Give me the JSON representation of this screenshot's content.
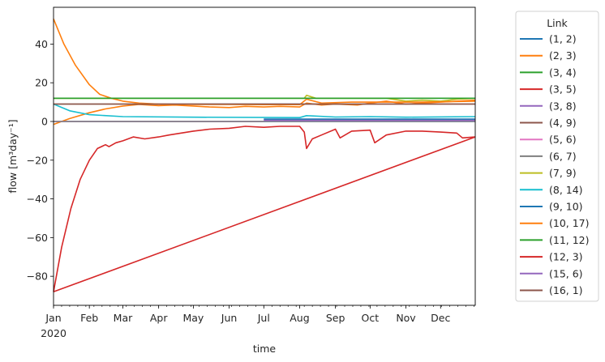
{
  "chart_data": {
    "type": "line",
    "xlabel": "time",
    "ylabel": "flow [m³day⁻¹]",
    "x_tick_labels": [
      "Jan",
      "Feb",
      "Mar",
      "Apr",
      "May",
      "Jun",
      "Jul",
      "Aug",
      "Sep",
      "Oct",
      "Nov",
      "Dec"
    ],
    "x_year_label": "2020",
    "x_start": "2020-01-01",
    "x_end": "2020-12-31",
    "ylim": [
      -95,
      59
    ],
    "y_ticks": [
      40,
      20,
      0,
      -20,
      -40,
      -60,
      -80
    ],
    "grid": false,
    "legend_title": "Link",
    "legend_position": "outside-right",
    "series": [
      {
        "name": "(1, 2)",
        "color": "#1f77b4",
        "points": [
          [
            "2020-01-01",
            0
          ],
          [
            "2020-12-31",
            0
          ]
        ]
      },
      {
        "name": "(2, 3)",
        "color": "#ff7f0e",
        "points": [
          [
            "2020-01-01",
            -1.5
          ],
          [
            "2020-01-15",
            1.5
          ],
          [
            "2020-02-01",
            4.5
          ],
          [
            "2020-02-15",
            6.5
          ],
          [
            "2020-03-01",
            8
          ],
          [
            "2020-03-15",
            8.8
          ],
          [
            "2020-04-01",
            8.2
          ],
          [
            "2020-04-15",
            8.5
          ],
          [
            "2020-05-01",
            8.0
          ],
          [
            "2020-05-15",
            7.5
          ],
          [
            "2020-06-01",
            7.2
          ],
          [
            "2020-06-15",
            7.8
          ],
          [
            "2020-07-01",
            7.5
          ],
          [
            "2020-07-15",
            7.8
          ],
          [
            "2020-08-01",
            7.5
          ],
          [
            "2020-08-07",
            9.5
          ],
          [
            "2020-08-20",
            8.5
          ],
          [
            "2020-09-01",
            9.0
          ],
          [
            "2020-09-20",
            8.5
          ],
          [
            "2020-10-01",
            9.5
          ],
          [
            "2020-10-15",
            10.5
          ],
          [
            "2020-11-01",
            9.0
          ],
          [
            "2020-11-15",
            9.5
          ],
          [
            "2020-12-01",
            10.0
          ],
          [
            "2020-12-15",
            10.5
          ],
          [
            "2020-12-31",
            11.0
          ]
        ]
      },
      {
        "name": "(3, 4)",
        "color": "#2ca02c",
        "points": [
          [
            "2020-01-01",
            12
          ],
          [
            "2020-12-31",
            12
          ]
        ]
      },
      {
        "name": "(3, 5)",
        "color": "#d62728",
        "points": [
          [
            "2020-01-01",
            -88
          ],
          [
            "2020-12-31",
            -8
          ]
        ]
      },
      {
        "name": "(3, 8)",
        "color": "#9467bd",
        "points": [
          [
            "2020-07-01",
            1.0
          ],
          [
            "2020-12-31",
            1.0
          ]
        ]
      },
      {
        "name": "(4, 9)",
        "color": "#8c564b",
        "points": [
          [
            "2020-01-01",
            9
          ],
          [
            "2020-12-31",
            9
          ]
        ]
      },
      {
        "name": "(5, 6)",
        "color": "#e377c2",
        "points": [
          [
            "2020-01-01",
            0
          ],
          [
            "2020-07-01",
            0
          ]
        ]
      },
      {
        "name": "(6, 7)",
        "color": "#7f7f7f",
        "points": [
          [
            "2020-01-01",
            0
          ],
          [
            "2020-12-31",
            0
          ]
        ]
      },
      {
        "name": "(7, 9)",
        "color": "#bcbd22",
        "points": [
          [
            "2020-01-01",
            12
          ],
          [
            "2020-08-05",
            12
          ],
          [
            "2020-08-07",
            13.5
          ],
          [
            "2020-08-15",
            12
          ],
          [
            "2020-10-15",
            12
          ],
          [
            "2020-11-01",
            10.5
          ],
          [
            "2020-11-15",
            11.0
          ],
          [
            "2020-12-01",
            10.5
          ],
          [
            "2020-12-15",
            11.5
          ],
          [
            "2020-12-31",
            12
          ]
        ]
      },
      {
        "name": "(8, 14)",
        "color": "#17becf",
        "points": [
          [
            "2020-01-01",
            9
          ],
          [
            "2020-01-15",
            5.5
          ],
          [
            "2020-02-01",
            3.5
          ],
          [
            "2020-03-01",
            2.5
          ],
          [
            "2020-05-01",
            2.2
          ],
          [
            "2020-08-01",
            2.0
          ],
          [
            "2020-08-07",
            3.0
          ],
          [
            "2020-09-01",
            2.3
          ],
          [
            "2020-10-01",
            2.5
          ],
          [
            "2020-11-01",
            2.2
          ],
          [
            "2020-12-31",
            2.5
          ]
        ]
      },
      {
        "name": "(9, 10)",
        "color": "#1f77b4",
        "points": [
          [
            "2020-07-01",
            1.2
          ],
          [
            "2020-12-31",
            1.2
          ]
        ]
      },
      {
        "name": "(10, 17)",
        "color": "#ff7f0e",
        "points": [
          [
            "2020-01-01",
            53
          ],
          [
            "2020-01-10",
            40
          ],
          [
            "2020-01-20",
            29
          ],
          [
            "2020-02-01",
            19
          ],
          [
            "2020-02-10",
            14
          ],
          [
            "2020-02-20",
            12
          ],
          [
            "2020-03-01",
            10.5
          ],
          [
            "2020-03-15",
            9.5
          ],
          [
            "2020-04-01",
            9.0
          ],
          [
            "2020-05-01",
            8.8
          ],
          [
            "2020-06-01",
            8.8
          ],
          [
            "2020-07-01",
            8.7
          ],
          [
            "2020-08-01",
            8.7
          ],
          [
            "2020-08-07",
            11.5
          ],
          [
            "2020-08-20",
            9.5
          ],
          [
            "2020-09-15",
            10.0
          ],
          [
            "2020-10-15",
            10.0
          ],
          [
            "2020-11-15",
            10.0
          ],
          [
            "2020-12-31",
            10.5
          ]
        ]
      },
      {
        "name": "(11, 12)",
        "color": "#2ca02c",
        "points": [
          [
            "2020-01-01",
            12
          ],
          [
            "2020-12-31",
            12
          ]
        ]
      },
      {
        "name": "(12, 3)",
        "color": "#d62728",
        "points": [
          [
            "2020-01-01",
            -88
          ],
          [
            "2020-01-08",
            -65
          ],
          [
            "2020-01-16",
            -45
          ],
          [
            "2020-01-24",
            -30
          ],
          [
            "2020-02-01",
            -20
          ],
          [
            "2020-02-08",
            -14
          ],
          [
            "2020-02-15",
            -12
          ],
          [
            "2020-02-18",
            -13
          ],
          [
            "2020-02-24",
            -11
          ],
          [
            "2020-03-01",
            -10
          ],
          [
            "2020-03-10",
            -8
          ],
          [
            "2020-03-20",
            -9
          ],
          [
            "2020-04-01",
            -8
          ],
          [
            "2020-04-10",
            -7
          ],
          [
            "2020-05-01",
            -5
          ],
          [
            "2020-05-15",
            -4
          ],
          [
            "2020-06-01",
            -3.5
          ],
          [
            "2020-06-15",
            -2.5
          ],
          [
            "2020-07-01",
            -3
          ],
          [
            "2020-07-15",
            -2.5
          ],
          [
            "2020-08-01",
            -2.5
          ],
          [
            "2020-08-05",
            -5.5
          ],
          [
            "2020-08-07",
            -14
          ],
          [
            "2020-08-12",
            -9
          ],
          [
            "2020-08-20",
            -7
          ],
          [
            "2020-09-01",
            -4
          ],
          [
            "2020-09-05",
            -8.5
          ],
          [
            "2020-09-15",
            -5
          ],
          [
            "2020-10-01",
            -4.5
          ],
          [
            "2020-10-05",
            -11
          ],
          [
            "2020-10-15",
            -7
          ],
          [
            "2020-11-01",
            -5
          ],
          [
            "2020-11-15",
            -5
          ],
          [
            "2020-12-01",
            -5.5
          ],
          [
            "2020-12-15",
            -6
          ],
          [
            "2020-12-20",
            -8.5
          ],
          [
            "2020-12-31",
            -8
          ]
        ]
      },
      {
        "name": "(15, 6)",
        "color": "#9467bd",
        "points": [
          [
            "2020-07-01",
            0.5
          ],
          [
            "2020-12-31",
            0.5
          ]
        ]
      },
      {
        "name": "(16, 1)",
        "color": "#8c564b",
        "points": [
          [
            "2020-01-01",
            9
          ],
          [
            "2020-12-31",
            9
          ]
        ]
      }
    ]
  }
}
